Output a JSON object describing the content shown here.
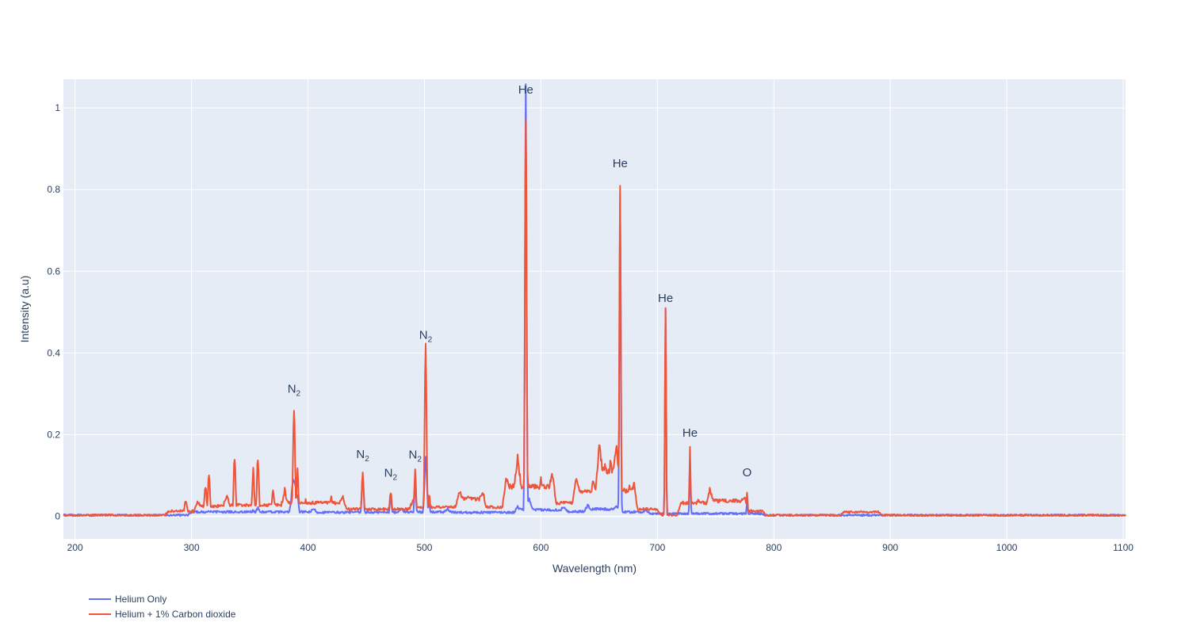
{
  "chart_data": {
    "type": "line",
    "title": "",
    "xlabel": "Wavelength (nm)",
    "ylabel": "Intensity (a.u)",
    "xlim": [
      190,
      1102
    ],
    "ylim": [
      -0.055,
      1.07
    ],
    "x_ticks": [
      200,
      300,
      400,
      500,
      600,
      700,
      800,
      900,
      1000,
      1100
    ],
    "y_ticks": [
      0,
      0.2,
      0.4,
      0.6,
      0.8,
      1
    ],
    "y_tick_labels": [
      "0",
      "0.2",
      "0.4",
      "0.6",
      "0.8",
      "1"
    ],
    "grid": true,
    "legend_position": "bottom-left",
    "colors": {
      "plot_bg": "#e5ecf6",
      "grid": "#ffffff",
      "text": "#2a3f5f"
    },
    "series": [
      {
        "name": "Helium Only",
        "color": "#636efa",
        "baseline": 0.003,
        "broad": [
          [
            300,
            405,
            0.008
          ],
          [
            405,
            480,
            0.007
          ],
          [
            480,
            520,
            0.008
          ],
          [
            520,
            580,
            0.007
          ],
          [
            580,
            620,
            0.013
          ],
          [
            620,
            640,
            0.009
          ],
          [
            640,
            665,
            0.015
          ],
          [
            665,
            690,
            0.008
          ],
          [
            690,
            790,
            0.004
          ]
        ],
        "peaks": [
          [
            315,
            0.01,
            1.5
          ],
          [
            337,
            0.01,
            1.2
          ],
          [
            353,
            0.015,
            1.5
          ],
          [
            357,
            0.02,
            1.5
          ],
          [
            388,
            0.09,
            2
          ],
          [
            391,
            0.05,
            1
          ],
          [
            447,
            0.1,
            0.8
          ],
          [
            471,
            0.05,
            0.8
          ],
          [
            492,
            0.07,
            0.8
          ],
          [
            501,
            0.15,
            1
          ],
          [
            504,
            0.03,
            0.8
          ],
          [
            587,
            1.0,
            0.7
          ],
          [
            590,
            0.04,
            2
          ],
          [
            668,
            0.78,
            0.6
          ],
          [
            707,
            0.525,
            0.5
          ],
          [
            728,
            0.14,
            0.5
          ],
          [
            777,
            0.04,
            0.5
          ]
        ]
      },
      {
        "name": "Helium + 1% Carbon dioxide",
        "color": "#ef553b",
        "baseline": 0.003,
        "broad": [
          [
            280,
            305,
            0.01
          ],
          [
            305,
            330,
            0.022
          ],
          [
            330,
            380,
            0.025
          ],
          [
            380,
            430,
            0.03
          ],
          [
            430,
            490,
            0.015
          ],
          [
            490,
            530,
            0.02
          ],
          [
            530,
            550,
            0.04
          ],
          [
            550,
            570,
            0.02
          ],
          [
            570,
            580,
            0.07
          ],
          [
            580,
            610,
            0.07
          ],
          [
            610,
            630,
            0.03
          ],
          [
            630,
            650,
            0.06
          ],
          [
            650,
            665,
            0.11
          ],
          [
            665,
            680,
            0.06
          ],
          [
            680,
            700,
            0.015
          ],
          [
            720,
            745,
            0.03
          ],
          [
            745,
            775,
            0.035
          ],
          [
            775,
            790,
            0.01
          ],
          [
            860,
            890,
            0.008
          ]
        ],
        "peaks": [
          [
            295,
            0.035,
            1.2
          ],
          [
            312,
            0.07,
            1
          ],
          [
            315,
            0.105,
            0.8
          ],
          [
            337,
            0.148,
            0.8
          ],
          [
            353,
            0.112,
            0.8
          ],
          [
            357,
            0.148,
            0.8
          ],
          [
            370,
            0.06,
            1
          ],
          [
            380,
            0.065,
            1
          ],
          [
            388,
            0.268,
            0.8
          ],
          [
            391,
            0.11,
            0.8
          ],
          [
            398,
            0.04,
            1
          ],
          [
            420,
            0.045,
            1.5
          ],
          [
            447,
            0.108,
            0.8
          ],
          [
            471,
            0.062,
            0.8
          ],
          [
            492,
            0.107,
            0.8
          ],
          [
            501,
            0.4,
            0.8
          ],
          [
            504,
            0.056,
            0.8
          ],
          [
            538,
            0.045,
            4
          ],
          [
            587,
            1.0,
            0.7
          ],
          [
            593,
            0.08,
            1.5
          ],
          [
            600,
            0.09,
            1.5
          ],
          [
            645,
            0.09,
            1.5
          ],
          [
            655,
            0.13,
            1.2
          ],
          [
            660,
            0.14,
            1.2
          ],
          [
            668,
            0.82,
            0.6
          ],
          [
            676,
            0.07,
            1.5
          ],
          [
            707,
            0.49,
            0.5
          ],
          [
            728,
            0.16,
            0.5
          ],
          [
            735,
            0.04,
            1.5
          ],
          [
            777,
            0.063,
            0.5
          ]
        ]
      }
    ],
    "annotations": [
      {
        "x": 388,
        "y": 0.268,
        "text": "N",
        "sub": "2"
      },
      {
        "x": 447,
        "y": 0.108,
        "text": "N",
        "sub": "2"
      },
      {
        "x": 471,
        "y": 0.062,
        "text": "N",
        "sub": "2"
      },
      {
        "x": 492,
        "y": 0.107,
        "text": "N",
        "sub": "2"
      },
      {
        "x": 501,
        "y": 0.4,
        "text": "N",
        "sub": "2"
      },
      {
        "x": 587,
        "y": 1.0,
        "text": "He",
        "sub": ""
      },
      {
        "x": 668,
        "y": 0.82,
        "text": "He",
        "sub": ""
      },
      {
        "x": 707,
        "y": 0.49,
        "text": "He",
        "sub": ""
      },
      {
        "x": 728,
        "y": 0.16,
        "text": "He",
        "sub": ""
      },
      {
        "x": 777,
        "y": 0.063,
        "text": "O",
        "sub": ""
      }
    ]
  }
}
